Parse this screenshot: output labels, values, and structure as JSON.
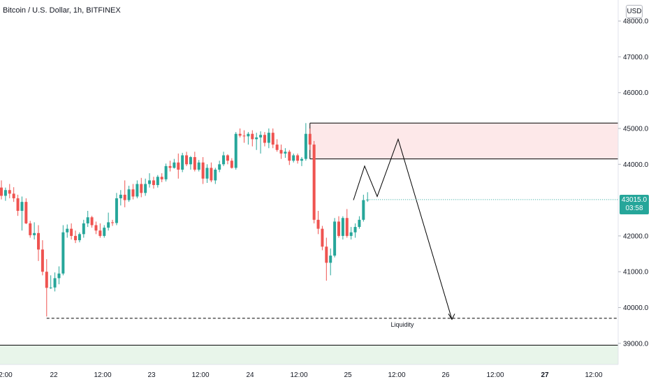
{
  "header": {
    "symbol": "Bitcoin / U.S. Dollar, 1h, BITFINEX"
  },
  "price_scale": {
    "currency": "USD"
  },
  "last_price": {
    "value": "43015.0",
    "countdown": "03:58"
  },
  "colors": {
    "up": "#26a69a",
    "down": "#ef5350",
    "supply_zone": "#fde8e9",
    "demand_zone": "#e8f5ea"
  },
  "chart_data": {
    "type": "candlestick",
    "title": "Bitcoin / U.S. Dollar, 1h, BITFINEX",
    "xlabel": "",
    "ylabel": "",
    "ylim": [
      38500,
      48200
    ],
    "y_ticks": [
      "48000.0",
      "47000.0",
      "46000.0",
      "45000.0",
      "44000.0",
      "42000.0",
      "41000.0",
      "40000.0",
      "39000.0"
    ],
    "x_ticks": [
      "2:00",
      "22",
      "12:00",
      "23",
      "12:00",
      "24",
      "12:00",
      "25",
      "12:00",
      "26",
      "12:00",
      "27",
      "12:00"
    ],
    "x_tick_bold": [
      false,
      false,
      false,
      false,
      false,
      false,
      false,
      false,
      false,
      false,
      false,
      true,
      false
    ],
    "candles": [
      [
        43350,
        43550,
        43020,
        43120
      ],
      [
        43120,
        43350,
        42980,
        43280
      ],
      [
        43280,
        43450,
        43050,
        43180
      ],
      [
        43180,
        43360,
        42950,
        43050
      ],
      [
        43050,
        43150,
        42560,
        42700
      ],
      [
        42700,
        43100,
        42150,
        42950
      ],
      [
        42950,
        43050,
        42330,
        42350
      ],
      [
        42350,
        42420,
        41950,
        42020
      ],
      [
        42020,
        42380,
        41900,
        42080
      ],
      [
        42080,
        42300,
        41300,
        41620
      ],
      [
        41620,
        41880,
        40900,
        41000
      ],
      [
        41000,
        41350,
        39750,
        40550
      ],
      [
        40550,
        40900,
        40520,
        40560
      ],
      [
        40560,
        40980,
        40450,
        40820
      ],
      [
        40820,
        41150,
        40650,
        40950
      ],
      [
        40950,
        42300,
        40900,
        42100
      ],
      [
        42100,
        42320,
        41950,
        42200
      ],
      [
        42200,
        42350,
        41900,
        42000
      ],
      [
        42000,
        42150,
        41800,
        41880
      ],
      [
        41880,
        42100,
        41820,
        42050
      ],
      [
        42050,
        42450,
        41950,
        42350
      ],
      [
        42350,
        42700,
        42250,
        42520
      ],
      [
        42520,
        42560,
        42230,
        42300
      ],
      [
        42300,
        42400,
        42050,
        42150
      ],
      [
        42150,
        42350,
        41950,
        42000
      ],
      [
        42000,
        42300,
        41950,
        42230
      ],
      [
        42230,
        42650,
        42150,
        42380
      ],
      [
        42380,
        42450,
        42280,
        42360
      ],
      [
        42360,
        43200,
        42300,
        43050
      ],
      [
        43050,
        43280,
        42850,
        43150
      ],
      [
        43150,
        43550,
        42800,
        43000
      ],
      [
        43000,
        43400,
        42950,
        43300
      ],
      [
        43300,
        43450,
        43020,
        43100
      ],
      [
        43100,
        43550,
        43050,
        43450
      ],
      [
        43450,
        43620,
        43080,
        43200
      ],
      [
        43200,
        43600,
        43120,
        43450
      ],
      [
        43450,
        43750,
        43350,
        43550
      ],
      [
        43550,
        43650,
        43320,
        43420
      ],
      [
        43420,
        43700,
        43350,
        43650
      ],
      [
        43650,
        43750,
        43500,
        43580
      ],
      [
        43580,
        44020,
        43520,
        43950
      ],
      [
        43950,
        44100,
        43800,
        43900
      ],
      [
        43900,
        44150,
        43880,
        44050
      ],
      [
        44050,
        44300,
        43600,
        43850
      ],
      [
        43850,
        44320,
        43780,
        44250
      ],
      [
        44250,
        44350,
        43950,
        44000
      ],
      [
        44000,
        44230,
        43850,
        44200
      ],
      [
        44200,
        44350,
        43800,
        43850
      ],
      [
        43850,
        44120,
        43800,
        44050
      ],
      [
        44050,
        44200,
        43450,
        43600
      ],
      [
        43600,
        44000,
        43480,
        43900
      ],
      [
        43900,
        44050,
        43500,
        43550
      ],
      [
        43550,
        43900,
        43450,
        43850
      ],
      [
        43850,
        44100,
        43780,
        44000
      ],
      [
        44000,
        44350,
        43950,
        44250
      ],
      [
        44250,
        44280,
        44000,
        44100
      ],
      [
        44100,
        44170,
        43880,
        43900
      ],
      [
        43900,
        44900,
        43850,
        44850
      ],
      [
        44850,
        45000,
        44750,
        44800
      ],
      [
        44800,
        44950,
        44600,
        44780
      ],
      [
        44780,
        44900,
        44550,
        44850
      ],
      [
        44850,
        44950,
        44500,
        44700
      ],
      [
        44700,
        44880,
        44400,
        44750
      ],
      [
        44750,
        44920,
        44300,
        44820
      ],
      [
        44820,
        44900,
        44500,
        44600
      ],
      [
        44600,
        45000,
        44450,
        44880
      ],
      [
        44880,
        45000,
        44450,
        44550
      ],
      [
        44550,
        44700,
        44350,
        44400
      ],
      [
        44400,
        44550,
        44150,
        44300
      ],
      [
        44300,
        44450,
        44180,
        44350
      ],
      [
        44350,
        44400,
        43980,
        44100
      ],
      [
        44100,
        44300,
        44050,
        44250
      ],
      [
        44250,
        44300,
        44020,
        44100
      ],
      [
        44100,
        44200,
        43950,
        44150
      ],
      [
        44150,
        45150,
        44100,
        44850
      ],
      [
        44850,
        45000,
        44400,
        44550
      ],
      [
        44550,
        44650,
        42350,
        42450
      ],
      [
        42450,
        42700,
        42050,
        42200
      ],
      [
        42200,
        42280,
        41600,
        41700
      ],
      [
        41700,
        41950,
        40750,
        41250
      ],
      [
        41250,
        41650,
        40900,
        41450
      ],
      [
        41450,
        42500,
        41400,
        42400
      ],
      [
        42400,
        42550,
        41950,
        42000
      ],
      [
        42000,
        42550,
        41900,
        42500
      ],
      [
        42500,
        42750,
        41950,
        42000
      ],
      [
        42000,
        42250,
        41900,
        42100
      ],
      [
        42100,
        42350,
        41950,
        42250
      ],
      [
        42250,
        42550,
        42200,
        42450
      ],
      [
        42450,
        43150,
        42400,
        43000
      ],
      [
        43000,
        43220,
        42950,
        43015
      ]
    ],
    "candle_x_start": 2,
    "candle_x_step": 5.89,
    "supply_zone": {
      "from_candle": 75,
      "price_top": 45150,
      "price_bottom": 44150
    },
    "demand_zone": {
      "from_candle": 0,
      "price_top": 38950,
      "price_bottom": 38300
    },
    "liquidity_line": {
      "price": 39700,
      "label": "Liquidity",
      "from_candle": 11
    },
    "projection_path": [
      [
        43000,
        0
      ],
      [
        43950,
        1
      ],
      [
        43100,
        2
      ],
      [
        44700,
        3
      ],
      [
        39670,
        4
      ]
    ],
    "last_price": 43015.0
  }
}
